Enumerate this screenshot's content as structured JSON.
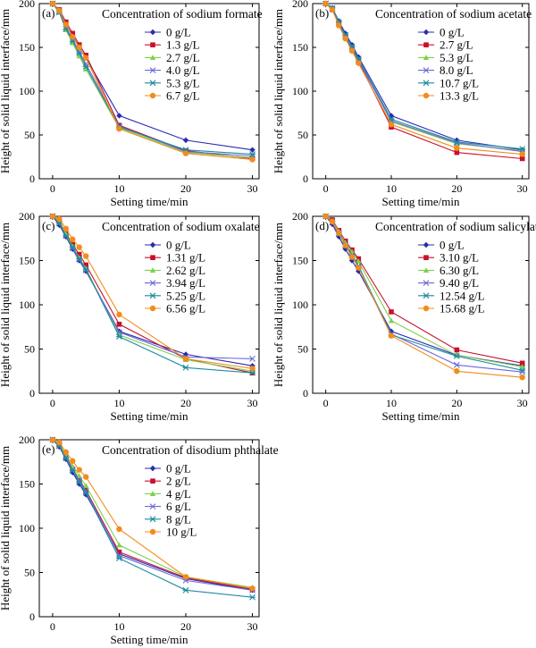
{
  "colors": {
    "0": "#2b2bb0",
    "1": "#c8102e",
    "2": "#7fd14a",
    "3": "#6a6ad8",
    "4": "#1f8ca0",
    "5": "#f28c1b"
  },
  "markers": [
    "diamond",
    "square",
    "triangle",
    "x",
    "star",
    "circle"
  ],
  "chart_data": [
    {
      "type": "line",
      "panel_label": "(a)",
      "title": "Concentration of sodium formate",
      "xlabel": "Setting time/min",
      "ylabel": "Height of solid liquid interface/mm",
      "xlim": [
        -2,
        31
      ],
      "ylim": [
        0,
        200
      ],
      "xticks": [
        "0",
        "10",
        "20",
        "30"
      ],
      "yticks": [
        "0",
        "50",
        "100",
        "150",
        "200"
      ],
      "x": [
        0,
        1,
        2,
        3,
        4,
        5,
        10,
        20,
        30
      ],
      "series": [
        {
          "name": "0 g/L",
          "values": [
            200,
            192,
            176,
            163,
            150,
            138,
            72,
            44,
            33
          ]
        },
        {
          "name": "1.3 g/L",
          "values": [
            200,
            193,
            179,
            166,
            153,
            141,
            61,
            32,
            23
          ]
        },
        {
          "name": "2.7 g/L",
          "values": [
            200,
            190,
            170,
            155,
            140,
            125,
            58,
            30,
            24
          ]
        },
        {
          "name": "4.0 g/L",
          "values": [
            200,
            191,
            173,
            159,
            145,
            131,
            60,
            31,
            26
          ]
        },
        {
          "name": "5.3 g/L",
          "values": [
            200,
            190,
            171,
            157,
            143,
            128,
            59,
            33,
            28
          ]
        },
        {
          "name": "6.7 g/L",
          "values": [
            200,
            192,
            176,
            162,
            150,
            138,
            57,
            29,
            22
          ]
        }
      ]
    },
    {
      "type": "line",
      "panel_label": "(b)",
      "title": "Concentration of sodium acetate",
      "xlabel": "Setting time/min",
      "ylabel": "Height of solid liquid interface/mm",
      "xlim": [
        -2,
        31
      ],
      "ylim": [
        0,
        200
      ],
      "xticks": [
        "0",
        "10",
        "20",
        "30"
      ],
      "yticks": [
        "0",
        "50",
        "100",
        "150",
        "200"
      ],
      "x": [
        0,
        1,
        2,
        3,
        4,
        5,
        10,
        20,
        30
      ],
      "series": [
        {
          "name": "0 g/L",
          "values": [
            200,
            195,
            180,
            166,
            153,
            139,
            72,
            44,
            33
          ]
        },
        {
          "name": "2.7 g/L",
          "values": [
            200,
            193,
            176,
            161,
            148,
            134,
            59,
            30,
            23
          ]
        },
        {
          "name": "5.3 g/L",
          "values": [
            200,
            194,
            178,
            163,
            150,
            136,
            65,
            40,
            32
          ]
        },
        {
          "name": "8.0 g/L",
          "values": [
            200,
            194,
            177,
            162,
            149,
            135,
            66,
            41,
            31
          ]
        },
        {
          "name": "10.7 g/L",
          "values": [
            200,
            195,
            179,
            164,
            151,
            137,
            68,
            42,
            34
          ]
        },
        {
          "name": "13.3 g/L",
          "values": [
            200,
            193,
            175,
            160,
            146,
            132,
            62,
            35,
            28
          ]
        }
      ]
    },
    {
      "type": "line",
      "panel_label": "(c)",
      "title": "Concentration of sodium oxalate",
      "xlabel": "Setting time/min",
      "ylabel": "Height of solid liquid interface/mm",
      "xlim": [
        -2,
        31
      ],
      "ylim": [
        0,
        200
      ],
      "xticks": [
        "0",
        "10",
        "20",
        "30"
      ],
      "yticks": [
        "0",
        "50",
        "100",
        "150",
        "200"
      ],
      "x": [
        0,
        1,
        2,
        3,
        4,
        5,
        10,
        20,
        30
      ],
      "series": [
        {
          "name": "0 g/L",
          "values": [
            200,
            190,
            177,
            163,
            150,
            138,
            70,
            44,
            31
          ]
        },
        {
          "name": "1.31 g/L",
          "values": [
            200,
            194,
            181,
            168,
            157,
            145,
            78,
            39,
            23
          ]
        },
        {
          "name": "2.62 g/L",
          "values": [
            200,
            193,
            180,
            166,
            153,
            141,
            66,
            38,
            25
          ]
        },
        {
          "name": "3.94 g/L",
          "values": [
            200,
            192,
            178,
            164,
            151,
            139,
            69,
            41,
            39
          ]
        },
        {
          "name": "5.25 g/L",
          "values": [
            200,
            192,
            178,
            165,
            152,
            140,
            64,
            29,
            23
          ]
        },
        {
          "name": "6.56 g/L",
          "values": [
            200,
            197,
            186,
            174,
            165,
            155,
            89,
            39,
            28
          ]
        }
      ]
    },
    {
      "type": "line",
      "panel_label": "(d)",
      "title": "Concentration of sodium salicylate",
      "xlabel": "Setting time/min",
      "ylabel": "Height of solid liquid interface/mm",
      "xlim": [
        -2,
        31
      ],
      "ylim": [
        0,
        200
      ],
      "xticks": [
        "0",
        "10",
        "20",
        "30"
      ],
      "yticks": [
        "0",
        "50",
        "100",
        "150",
        "200"
      ],
      "x": [
        0,
        1,
        2,
        3,
        4,
        5,
        10,
        20,
        30
      ],
      "series": [
        {
          "name": "0 g/L",
          "values": [
            200,
            191,
            177,
            163,
            150,
            138,
            70,
            43,
            31
          ]
        },
        {
          "name": "3.10 g/L",
          "values": [
            200,
            196,
            184,
            172,
            162,
            152,
            92,
            49,
            34
          ]
        },
        {
          "name": "6.30 g/L",
          "values": [
            200,
            195,
            183,
            170,
            160,
            149,
            82,
            43,
            30
          ]
        },
        {
          "name": "9.40 g/L",
          "values": [
            200,
            193,
            180,
            167,
            155,
            143,
            67,
            32,
            24
          ]
        },
        {
          "name": "12.54 g/L",
          "values": [
            200,
            194,
            181,
            168,
            156,
            144,
            66,
            42,
            26
          ]
        },
        {
          "name": "15.68 g/L",
          "values": [
            200,
            194,
            181,
            167,
            154,
            142,
            65,
            25,
            18
          ]
        }
      ]
    },
    {
      "type": "line",
      "panel_label": "(e)",
      "title": "Concentration of disodium phthalate",
      "xlabel": "Setting time/min",
      "ylabel": "Height of solid liquid interface/mm",
      "xlim": [
        -2,
        31
      ],
      "ylim": [
        0,
        200
      ],
      "xticks": [
        "0",
        "10",
        "20",
        "30"
      ],
      "yticks": [
        "0",
        "50",
        "100",
        "150",
        "200"
      ],
      "x": [
        0,
        1,
        2,
        3,
        4,
        5,
        10,
        20,
        30
      ],
      "series": [
        {
          "name": "0 g/L",
          "values": [
            200,
            192,
            178,
            163,
            150,
            138,
            71,
            43,
            30
          ]
        },
        {
          "name": "2 g/L",
          "values": [
            200,
            194,
            181,
            167,
            155,
            143,
            73,
            44,
            31
          ]
        },
        {
          "name": "4 g/L",
          "values": [
            200,
            195,
            183,
            170,
            159,
            148,
            81,
            45,
            33
          ]
        },
        {
          "name": "6 g/L",
          "values": [
            200,
            193,
            180,
            166,
            154,
            142,
            69,
            41,
            30
          ]
        },
        {
          "name": "8 g/L",
          "values": [
            200,
            193,
            179,
            165,
            152,
            140,
            66,
            30,
            22
          ]
        },
        {
          "name": "10 g/L",
          "values": [
            200,
            197,
            186,
            176,
            166,
            158,
            99,
            45,
            32
          ]
        }
      ]
    }
  ]
}
